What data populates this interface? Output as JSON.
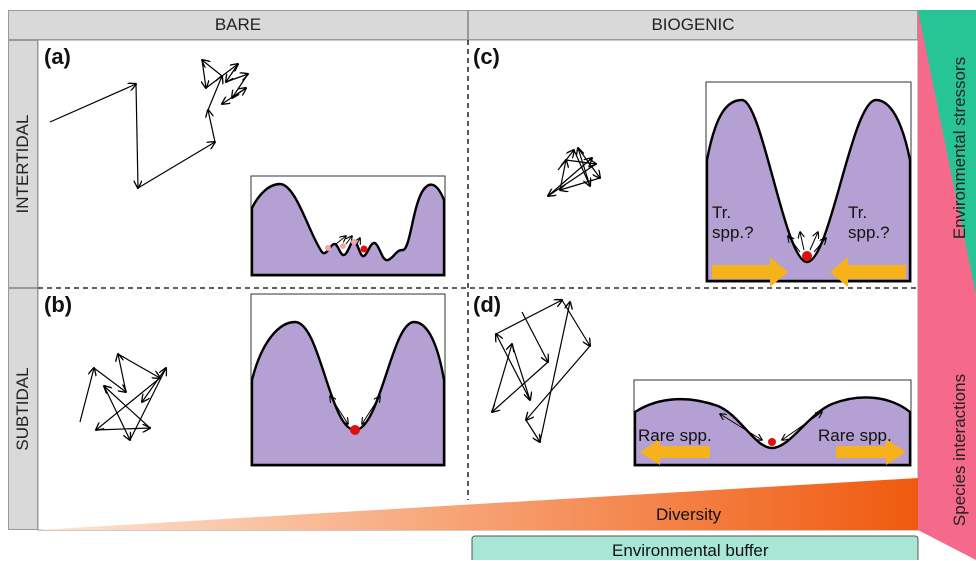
{
  "columns": {
    "bare": "BARE",
    "biogenic": "BIOGENIC"
  },
  "rows": {
    "intertidal": "INTERTIDAL",
    "subtidal": "SUBTIDAL"
  },
  "panels": {
    "a": "(a)",
    "b": "(b)",
    "c": "(c)",
    "d": "(d)"
  },
  "gradients": {
    "diversity": "Diversity",
    "environmental_buffer": "Environmental buffer",
    "environmental_stressors": "Environmental stressors",
    "species_interactions": "Species interactions"
  },
  "panel_c_labels": {
    "left": [
      "Tr.",
      "spp.?"
    ],
    "right": [
      "Tr.",
      "spp.?"
    ]
  },
  "panel_d_labels": {
    "left": "Rare spp.",
    "right": "Rare spp."
  },
  "colors": {
    "landscape_fill": "#b4a0d2",
    "ball": "#e01010",
    "arrow_orange": "#f5b21a",
    "diversity_dark": "#f05a0f",
    "diversity_light": "#fde6d4",
    "buffer": "#a8e6d6",
    "stressors": "#27c596",
    "interactions": "#f56a8a",
    "header_gray": "#d9d9d9"
  }
}
